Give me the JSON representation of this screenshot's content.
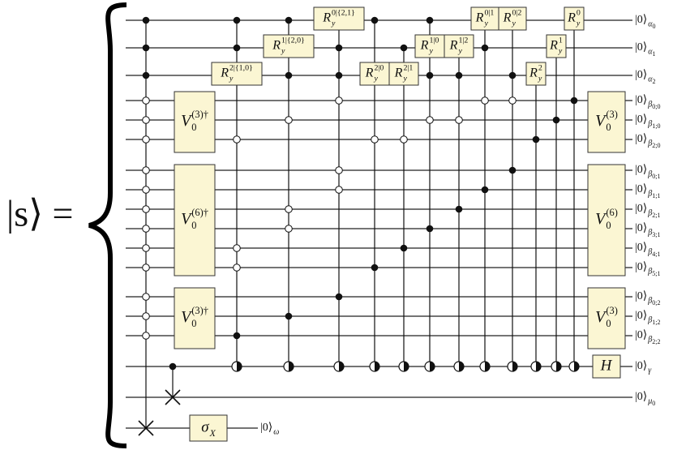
{
  "lhs": "|s⟩ =",
  "wires": [
    {
      "ket": "|0⟩",
      "sub": "α",
      "index": "0"
    },
    {
      "ket": "|0⟩",
      "sub": "α",
      "index": "1"
    },
    {
      "ket": "|0⟩",
      "sub": "α",
      "index": "2"
    },
    {
      "ket": "|0⟩",
      "sub": "β",
      "index": "0;0"
    },
    {
      "ket": "|0⟩",
      "sub": "β",
      "index": "1;0"
    },
    {
      "ket": "|0⟩",
      "sub": "β",
      "index": "2;0"
    },
    {
      "ket": "|0⟩",
      "sub": "β",
      "index": "0;1"
    },
    {
      "ket": "|0⟩",
      "sub": "β",
      "index": "1;1"
    },
    {
      "ket": "|0⟩",
      "sub": "β",
      "index": "2;1"
    },
    {
      "ket": "|0⟩",
      "sub": "β",
      "index": "3;1"
    },
    {
      "ket": "|0⟩",
      "sub": "β",
      "index": "4;1"
    },
    {
      "ket": "|0⟩",
      "sub": "β",
      "index": "5;1"
    },
    {
      "ket": "|0⟩",
      "sub": "β",
      "index": "0;2"
    },
    {
      "ket": "|0⟩",
      "sub": "β",
      "index": "1;2"
    },
    {
      "ket": "|0⟩",
      "sub": "β",
      "index": "2;2"
    },
    {
      "ket": "|0⟩",
      "sub": "γ"
    },
    {
      "ket": "|0⟩",
      "sub": "μ",
      "index": "0"
    },
    {
      "ket": "|0⟩",
      "sub": "ω"
    }
  ],
  "rotations": [
    {
      "base": "R",
      "sub": "y",
      "sup": "2|{1,0}"
    },
    {
      "base": "R",
      "sub": "y",
      "sup": "1|{2,0}"
    },
    {
      "base": "R",
      "sub": "y",
      "sup": "0|{2,1}"
    },
    {
      "base": "R",
      "sub": "y",
      "sup": "2|0"
    },
    {
      "base": "R",
      "sub": "y",
      "sup": "2|1"
    },
    {
      "base": "R",
      "sub": "y",
      "sup": "1|0"
    },
    {
      "base": "R",
      "sub": "y",
      "sup": "1|2"
    },
    {
      "base": "R",
      "sub": "y",
      "sup": "0|1"
    },
    {
      "base": "R",
      "sub": "y",
      "sup": "0|2"
    },
    {
      "base": "R",
      "sub": "y",
      "sup": "2"
    },
    {
      "base": "R",
      "sub": "y",
      "sup": "1"
    },
    {
      "base": "R",
      "sub": "y",
      "sup": "0"
    }
  ],
  "left_blocks": [
    {
      "base": "V",
      "sub": "0",
      "sup": "(3)†"
    },
    {
      "base": "V",
      "sub": "0",
      "sup": "(6)†"
    },
    {
      "base": "V",
      "sub": "0",
      "sup": "(3)†"
    }
  ],
  "right_blocks": [
    {
      "base": "V",
      "sub": "0",
      "sup": "(3)"
    },
    {
      "base": "V",
      "sub": "0",
      "sup": "(6)"
    },
    {
      "base": "V",
      "sub": "0",
      "sup": "(3)"
    }
  ],
  "hadamard": {
    "base": "H"
  },
  "sigma": {
    "base": "σ",
    "sub": "X"
  }
}
